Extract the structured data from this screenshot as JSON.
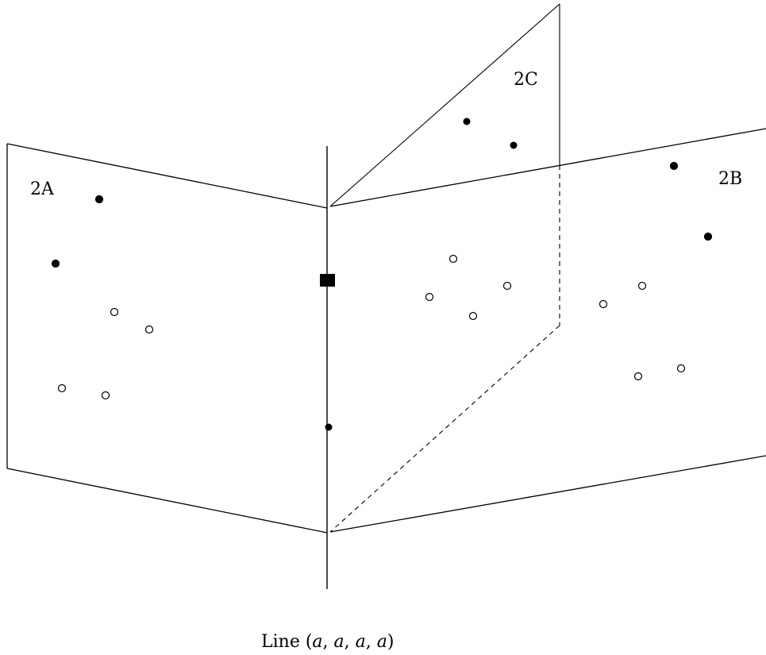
{
  "diagram": {
    "planes": [
      {
        "id": "2A",
        "label": "2A"
      },
      {
        "id": "2B",
        "label": "2B"
      },
      {
        "id": "2C",
        "label": "2C"
      }
    ],
    "caption": {
      "prefix": "Line ",
      "open": "(",
      "var1": "a",
      "sep1": ", ",
      "var2": "a",
      "sep2": ", ",
      "var3": "a",
      "sep3": ", ",
      "var4": "a",
      "close": ")"
    }
  }
}
